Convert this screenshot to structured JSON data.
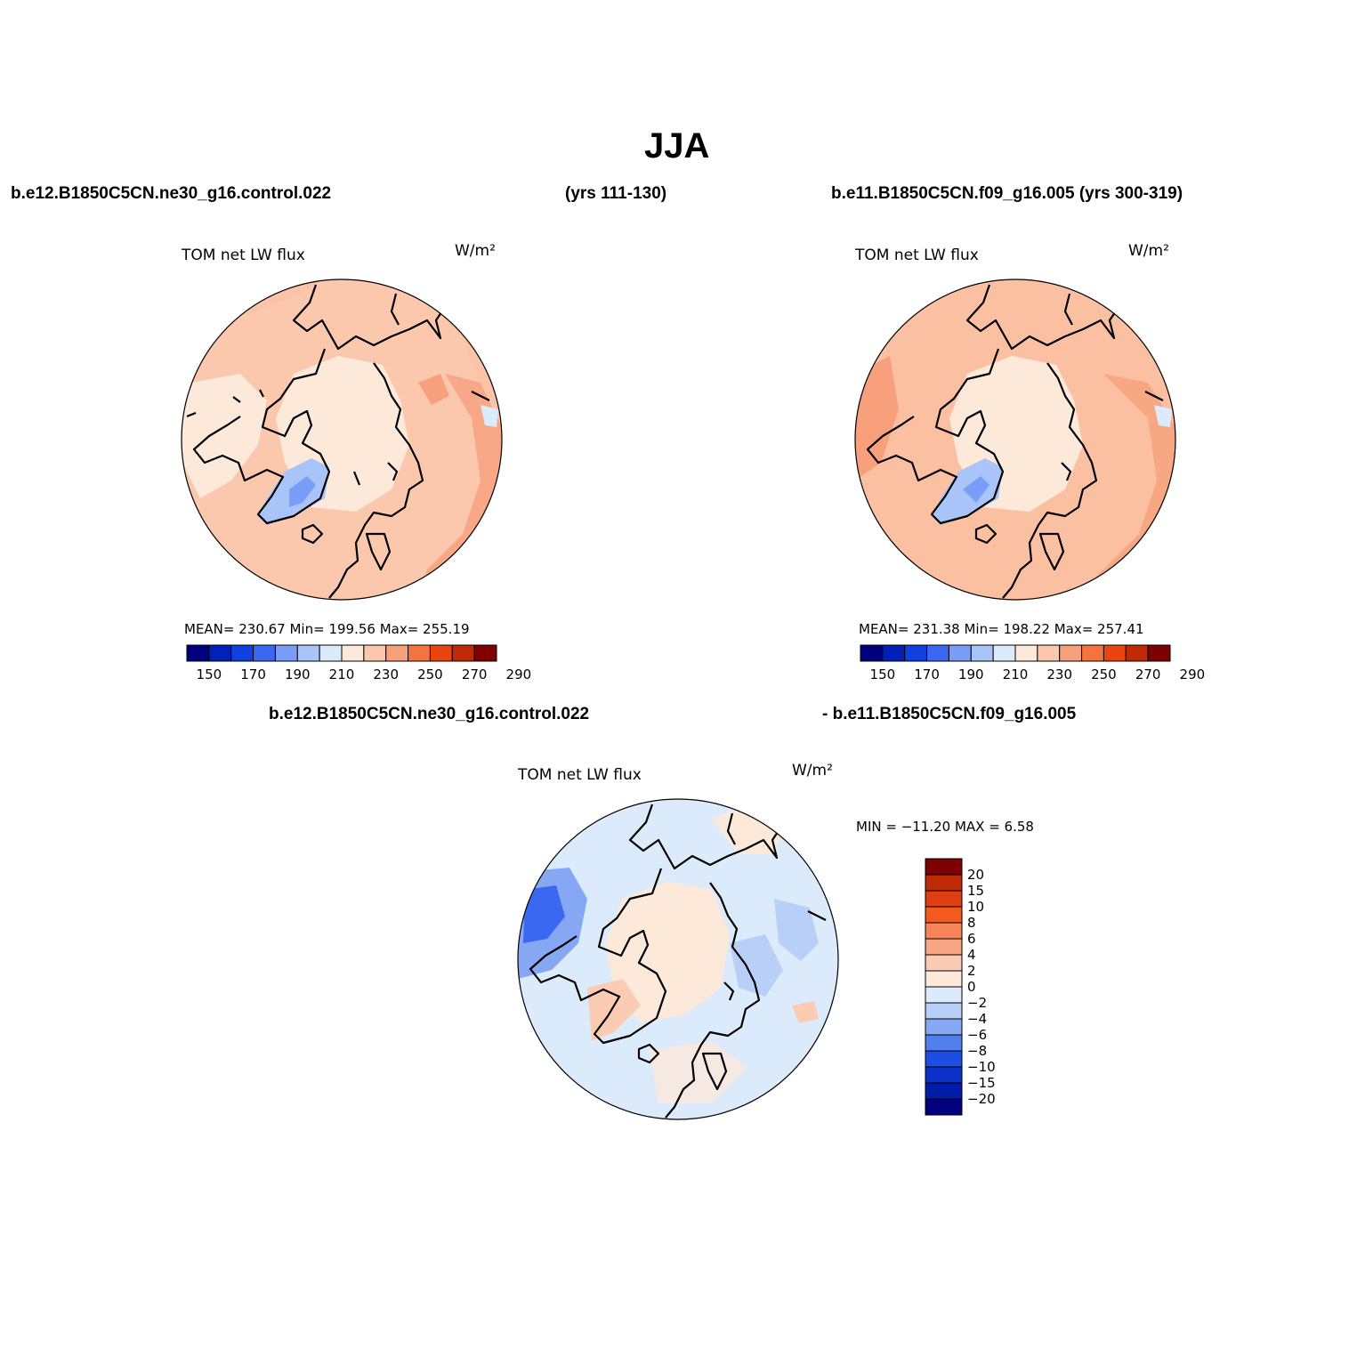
{
  "title": "JJA",
  "top_left_case": "b.e12.B1850C5CN.ne30_g16.control.022",
  "top_left_years": "(yrs 111-130)",
  "top_right_case": "b.e11.B1850C5CN.f09_g16.005 (yrs 300-319)",
  "bottom_case_a": "b.e12.B1850C5CN.ne30_g16.control.022",
  "bottom_case_b": "- b.e11.B1850C5CN.f09_g16.005",
  "panels": [
    {
      "variable": "TOM net LW flux",
      "units": "W/m²",
      "stats": "MEAN= 230.67   Min= 199.56   Max= 255.19"
    },
    {
      "variable": "TOM net LW flux",
      "units": "W/m²",
      "stats": "MEAN= 231.38   Min= 198.22   Max= 257.41"
    },
    {
      "variable": "TOM net LW flux",
      "units": "W/m²",
      "stats": "MIN = −11.20 MAX =    6.58"
    }
  ],
  "abs_colorbar": {
    "colors": [
      "#00007f",
      "#0020b8",
      "#1040e0",
      "#3a68f0",
      "#7a9ef8",
      "#a8c4f8",
      "#dcebfc",
      "#fde9d9",
      "#fbc8ae",
      "#f8a07c",
      "#f4733f",
      "#ea4410",
      "#c02a06",
      "#7f0000"
    ],
    "labels": [
      "150",
      "170",
      "190",
      "210",
      "230",
      "250",
      "270",
      "290"
    ]
  },
  "diff_colorbar": {
    "colors": [
      "#7f0000",
      "#c02a06",
      "#e03d10",
      "#f45a1e",
      "#f8845a",
      "#f9a684",
      "#fbcbb3",
      "#fde9d9",
      "#dcebfc",
      "#b8d0f8",
      "#86a8f4",
      "#5080ee",
      "#1d4ee3",
      "#0a30c8",
      "#001ca8",
      "#00007f"
    ],
    "labels": [
      "20",
      "15",
      "10",
      "8",
      "6",
      "4",
      "2",
      "0",
      "−2",
      "−4",
      "−6",
      "−8",
      "−10",
      "−15",
      "−20"
    ]
  }
}
